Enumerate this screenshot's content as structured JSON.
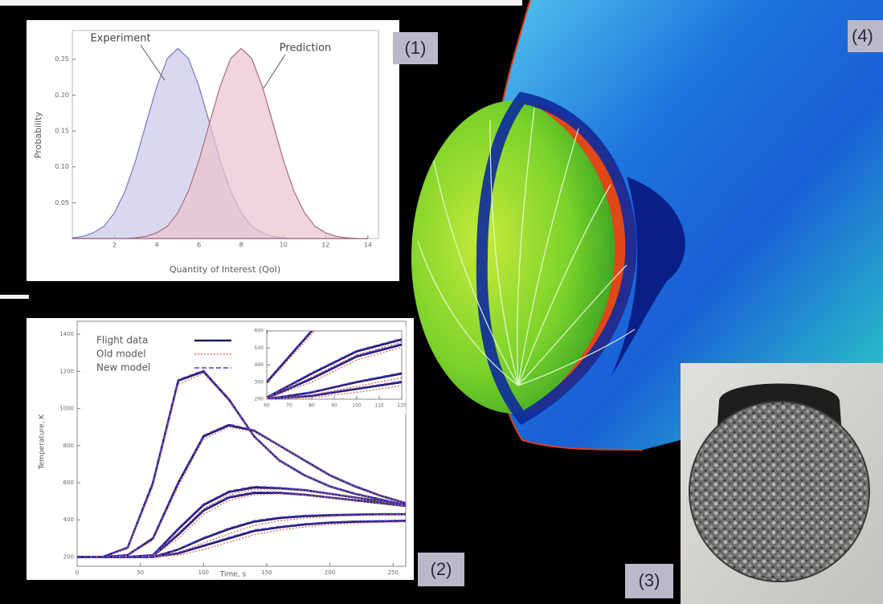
{
  "labels": [
    "(1)",
    "(2)",
    "(3)",
    "(4)"
  ],
  "chart_data": [
    {
      "type": "area",
      "xlabel": "Quantity of Interest (QoI)",
      "ylabel": "Probability",
      "x": [
        0,
        0.5,
        1,
        1.5,
        2,
        2.5,
        3,
        3.5,
        4,
        4.5,
        5,
        5.5,
        6,
        6.5,
        7,
        7.5,
        8,
        8.5,
        9,
        9.5,
        10,
        10.5,
        11,
        11.5,
        12,
        12.5,
        13,
        13.5,
        14
      ],
      "series": [
        {
          "name": "Experiment",
          "color": "#7a78b8",
          "fill": "#c9c8ea",
          "values": [
            0.001,
            0.003,
            0.008,
            0.017,
            0.036,
            0.066,
            0.109,
            0.161,
            0.212,
            0.251,
            0.265,
            0.251,
            0.212,
            0.161,
            0.109,
            0.066,
            0.036,
            0.017,
            0.008,
            0.003,
            0.001,
            0,
            0,
            0,
            0,
            0,
            0,
            0,
            0
          ]
        },
        {
          "name": "Prediction",
          "color": "#a86a80",
          "fill": "#eac3cd",
          "values": [
            0,
            0,
            0,
            0,
            0,
            0,
            0.001,
            0.003,
            0.008,
            0.017,
            0.036,
            0.066,
            0.109,
            0.161,
            0.212,
            0.251,
            0.265,
            0.251,
            0.212,
            0.161,
            0.109,
            0.066,
            0.036,
            0.017,
            0.008,
            0.003,
            0.001,
            0,
            0
          ]
        }
      ],
      "xlim": [
        0,
        14.5
      ],
      "ylim": [
        0,
        0.29
      ],
      "xticks": [
        2,
        4,
        6,
        8,
        10,
        12,
        14
      ],
      "yticks": [
        0.05,
        {
          "value": 0.1,
          "label": "0.10"
        },
        0.15,
        {
          "value": 0.2,
          "label": "0.20"
        },
        0.25
      ]
    },
    {
      "type": "line",
      "xlabel": "Time, s",
      "ylabel": "Temperature, K",
      "x": [
        0,
        20,
        40,
        60,
        80,
        100,
        120,
        140,
        160,
        180,
        200,
        220,
        240,
        260
      ],
      "series": [
        {
          "name": "Flight data",
          "color": "#1c1a5c",
          "style": "solid",
          "width": 2.6,
          "values": [
            [
              200,
              200,
              250,
              600,
              1150,
              1200,
              1050,
              850,
              720,
              640,
              580,
              540,
              510,
              480
            ],
            [
              200,
              200,
              210,
              300,
              600,
              850,
              910,
              880,
              800,
              720,
              640,
              580,
              530,
              490
            ],
            [
              200,
              200,
              200,
              210,
              350,
              480,
              550,
              575,
              570,
              560,
              540,
              520,
              500,
              480
            ],
            [
              200,
              200,
              200,
              205,
              320,
              450,
              520,
              545,
              545,
              535,
              520,
              505,
              490,
              475
            ],
            [
              200,
              200,
              200,
              200,
              240,
              300,
              350,
              390,
              410,
              420,
              425,
              428,
              430,
              430
            ],
            [
              200,
              200,
              200,
              200,
              220,
              260,
              300,
              340,
              360,
              375,
              385,
              390,
              392,
              395
            ]
          ]
        },
        {
          "name": "Old model",
          "color": "#e0706a",
          "style": "dotted",
          "width": 1.4,
          "values": [
            [
              200,
              200,
              245,
              580,
              1130,
              1190,
              1040,
              845,
              718,
              640,
              580,
              540,
              510,
              480
            ],
            [
              200,
              200,
              208,
              290,
              580,
              835,
              900,
              875,
              798,
              720,
              640,
              580,
              530,
              490
            ],
            [
              200,
              200,
              200,
              208,
              330,
              460,
              535,
              565,
              565,
              556,
              538,
              518,
              499,
              479
            ],
            [
              200,
              200,
              200,
              203,
              300,
              430,
              505,
              535,
              540,
              532,
              518,
              504,
              489,
              474
            ],
            [
              200,
              200,
              200,
              200,
              225,
              275,
              325,
              370,
              395,
              410,
              418,
              423,
              426,
              427
            ],
            [
              200,
              200,
              200,
              200,
              210,
              240,
              280,
              320,
              345,
              362,
              375,
              382,
              386,
              389
            ]
          ]
        },
        {
          "name": "New model",
          "color": "#4a3ad0",
          "style": "dashed",
          "width": 1.6,
          "values": [
            [
              200,
              200,
              252,
              605,
              1155,
              1205,
              1052,
              852,
              722,
              642,
              582,
              542,
              512,
              482
            ],
            [
              200,
              200,
              212,
              305,
              605,
              855,
              915,
              884,
              803,
              723,
              643,
              583,
              533,
              493
            ],
            [
              200,
              200,
              200,
              212,
              355,
              485,
              555,
              580,
              574,
              563,
              543,
              523,
              503,
              483
            ],
            [
              200,
              200,
              200,
              207,
              325,
              455,
              525,
              550,
              549,
              538,
              523,
              508,
              493,
              478
            ],
            [
              200,
              200,
              200,
              200,
              243,
              304,
              355,
              395,
              414,
              424,
              428,
              431,
              433,
              433
            ],
            [
              200,
              200,
              200,
              200,
              223,
              264,
              305,
              345,
              364,
              379,
              388,
              393,
              395,
              398
            ]
          ]
        }
      ],
      "xlim": [
        0,
        260
      ],
      "ylim": [
        150,
        1470
      ],
      "xticks": [
        0,
        50,
        100,
        150,
        200,
        250
      ],
      "yticks": [
        200,
        400,
        600,
        800,
        1000,
        1200,
        1400
      ],
      "inset": {
        "xlim": [
          60,
          120
        ],
        "ylim": [
          200,
          600
        ],
        "xticks": [
          60,
          70,
          80,
          90,
          100,
          110,
          120
        ],
        "yticks": [
          200,
          300,
          400,
          500,
          600
        ]
      }
    }
  ]
}
